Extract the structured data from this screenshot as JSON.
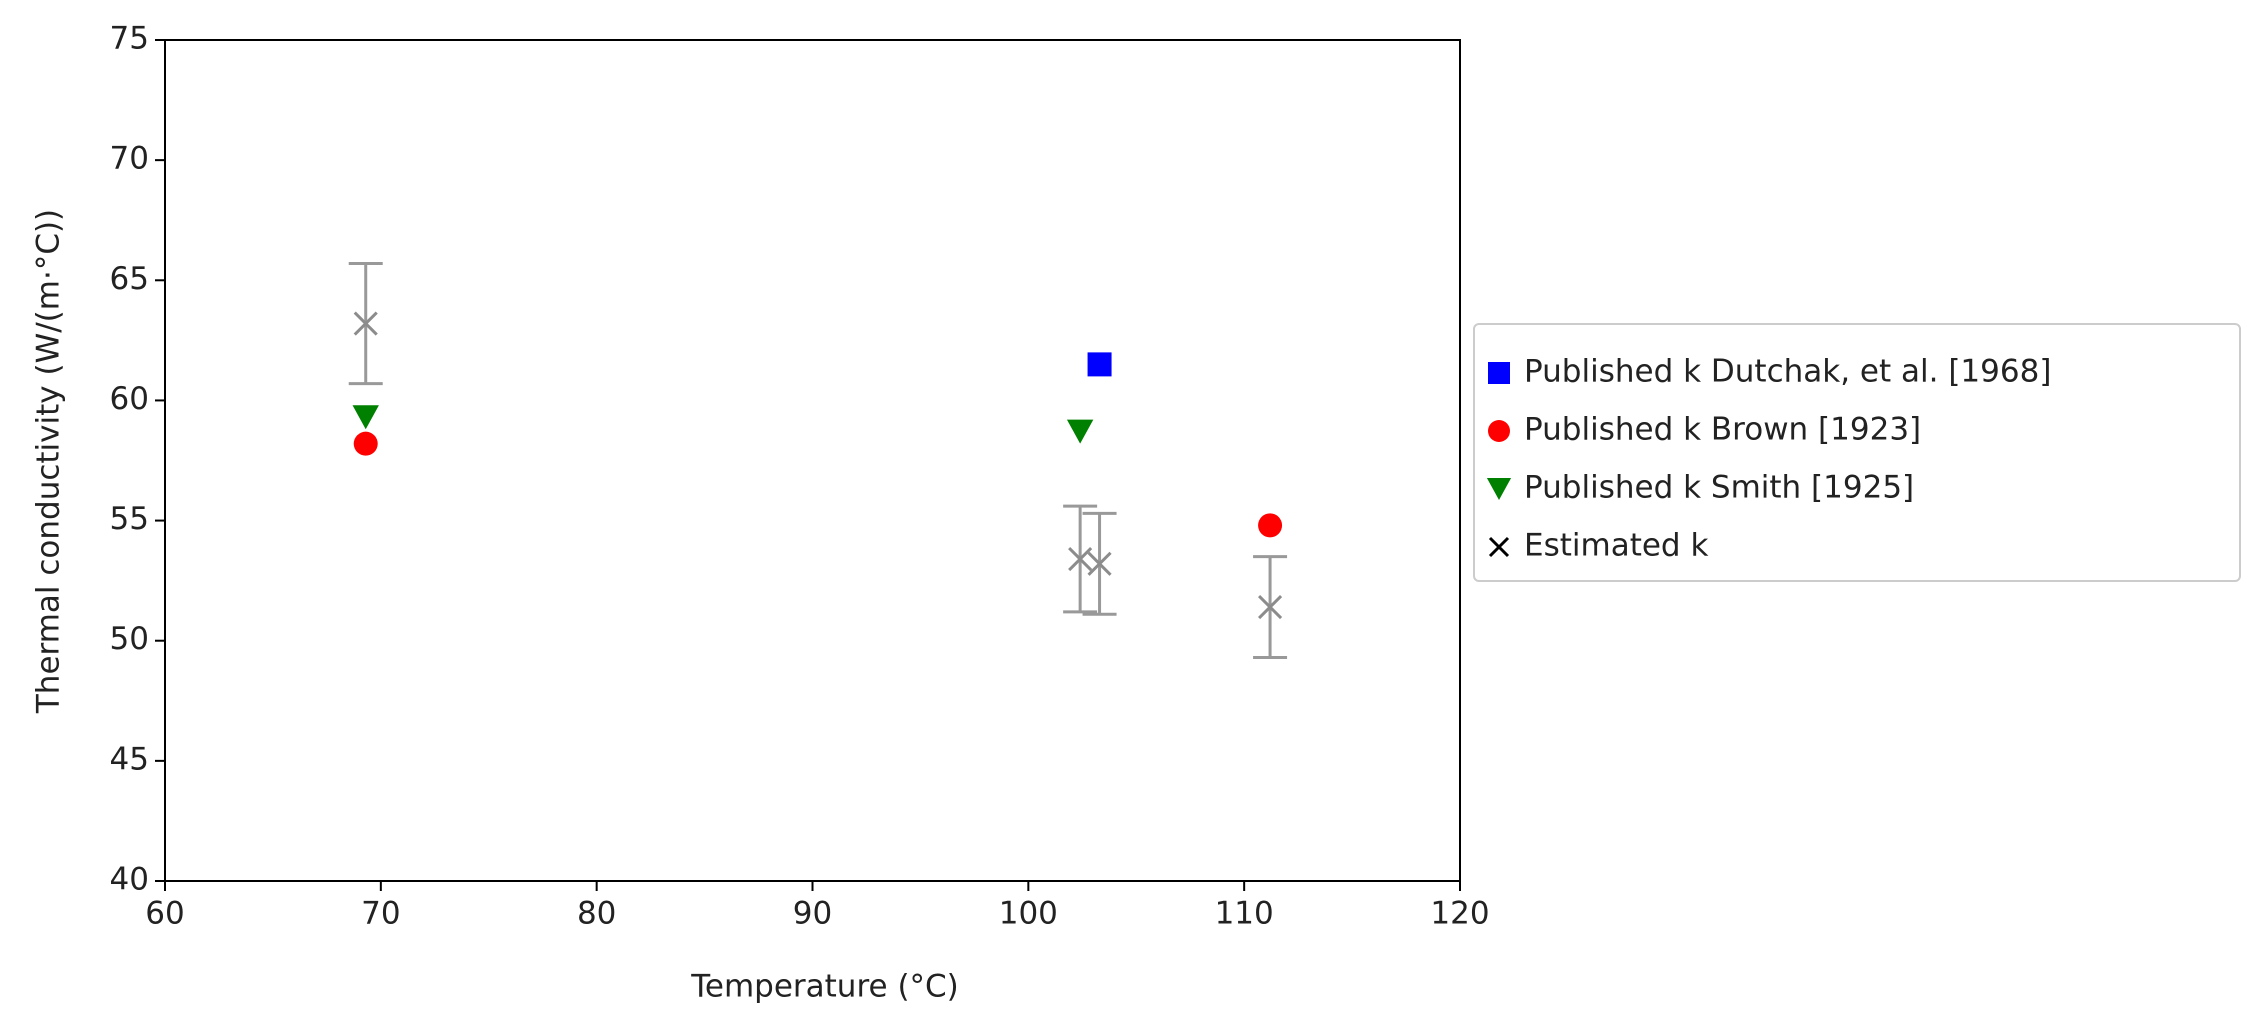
{
  "chart_data": {
    "type": "scatter",
    "x_label": "Temperature (°C)",
    "y_label": "Thermal conductivity (W/(m·°C))",
    "xlim": [
      60,
      120
    ],
    "xticks": [
      60,
      70,
      80,
      90,
      100,
      110,
      120
    ],
    "ylim": [
      40,
      75
    ],
    "yticks": [
      40,
      45,
      50,
      55,
      60,
      65,
      70,
      75
    ],
    "legend": "outside-right",
    "series": [
      {
        "name": "Published k Dutchak, et al. [1968]",
        "marker": "square",
        "color": "#0000ff",
        "x": [
          103.3
        ],
        "values": [
          61.5
        ]
      },
      {
        "name": "Published k Brown [1923]",
        "marker": "circle",
        "color": "#ff0000",
        "x": [
          69.3,
          111.2
        ],
        "values": [
          58.2,
          54.8
        ]
      },
      {
        "name": "Published k Smith [1925]",
        "marker": "triangle-down",
        "color": "#008000",
        "x": [
          69.3,
          102.4
        ],
        "values": [
          59.3,
          58.7
        ]
      },
      {
        "name": "Estimated k",
        "marker": "x",
        "color": "#8c8c8c",
        "legend_color": "#000000",
        "x": [
          69.3,
          102.4,
          103.3,
          111.2
        ],
        "values": [
          63.2,
          53.4,
          53.2,
          51.4
        ],
        "errors": [
          2.5,
          2.2,
          2.1,
          2.1
        ]
      }
    ]
  }
}
